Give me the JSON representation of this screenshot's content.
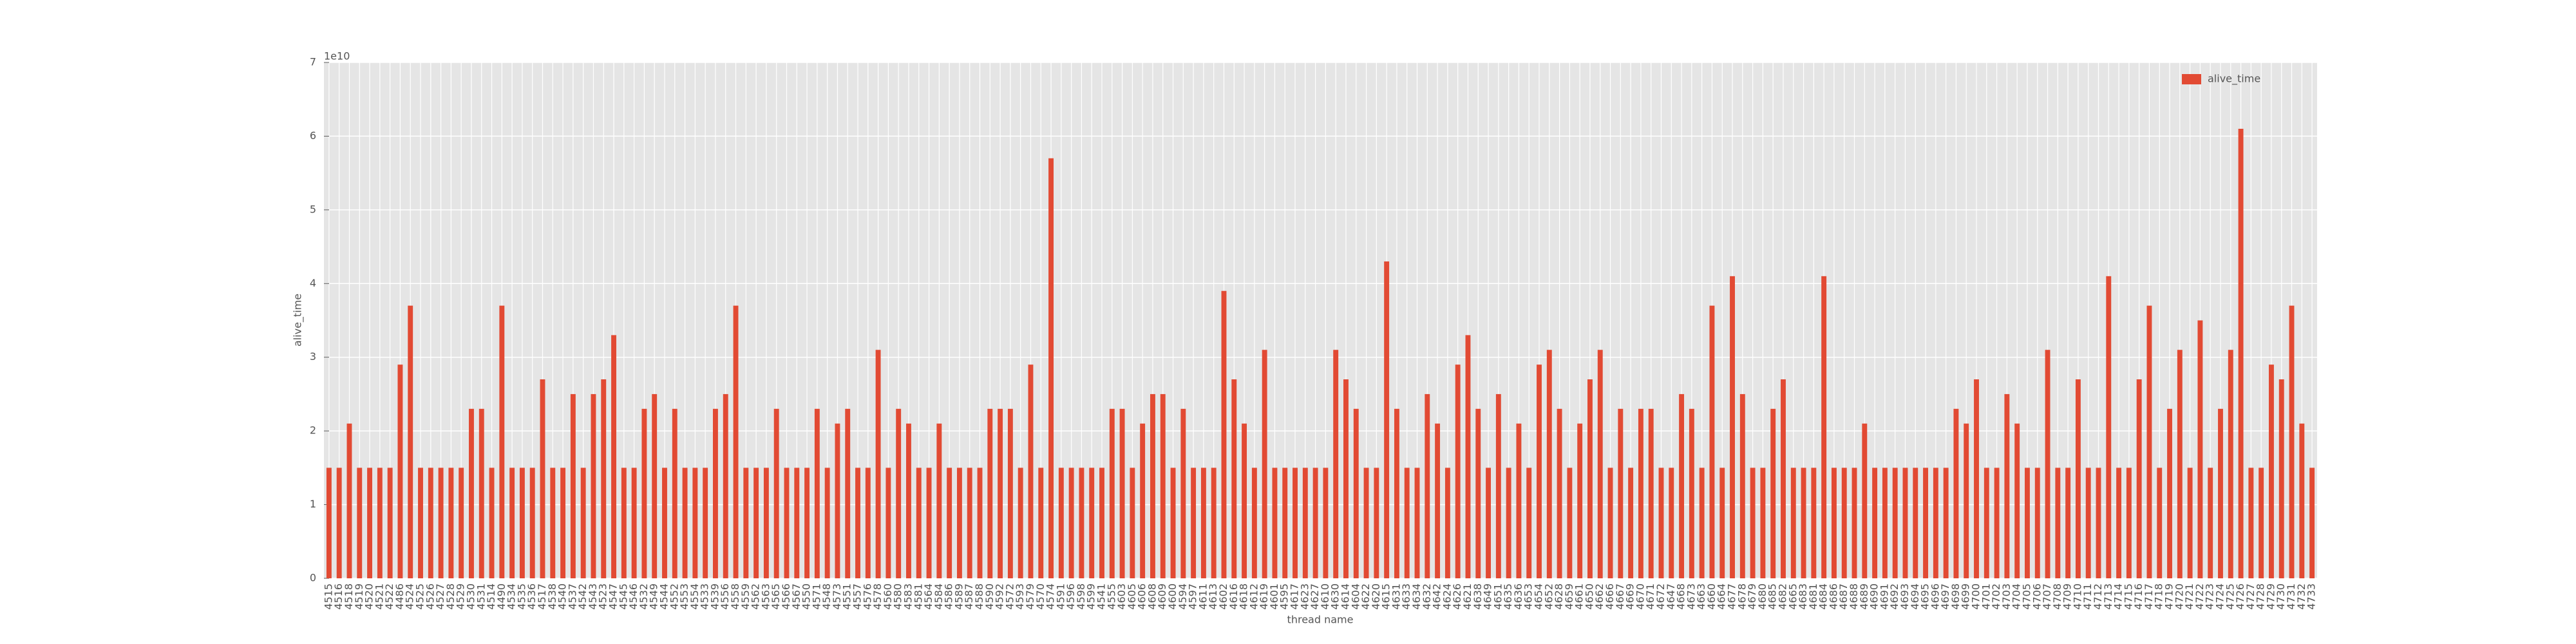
{
  "chart_data": {
    "type": "bar",
    "xlabel": "thread name",
    "ylabel": "alive_time",
    "y_offset_label": "1e10",
    "categories": [
      "4515",
      "4516",
      "4518",
      "4519",
      "4520",
      "4521",
      "4522",
      "4486",
      "4524",
      "4525",
      "4526",
      "4527",
      "4528",
      "4529",
      "4530",
      "4531",
      "4514",
      "4490",
      "4534",
      "4535",
      "4536",
      "4517",
      "4538",
      "4540",
      "4537",
      "4542",
      "4543",
      "4523",
      "4547",
      "4545",
      "4546",
      "4532",
      "4549",
      "4544",
      "4552",
      "4553",
      "4554",
      "4533",
      "4539",
      "4556",
      "4558",
      "4559",
      "4562",
      "4563",
      "4565",
      "4566",
      "4567",
      "4550",
      "4571",
      "4548",
      "4573",
      "4551",
      "4557",
      "4576",
      "4578",
      "4560",
      "4580",
      "4583",
      "4581",
      "4564",
      "4584",
      "4586",
      "4589",
      "4587",
      "4588",
      "4590",
      "4592",
      "4572",
      "4593",
      "4579",
      "4570",
      "4574",
      "4591",
      "4596",
      "4598",
      "4599",
      "4541",
      "4555",
      "4603",
      "4605",
      "4606",
      "4608",
      "4609",
      "4600",
      "4594",
      "4597",
      "4611",
      "4613",
      "4602",
      "4616",
      "4618",
      "4612",
      "4619",
      "4601",
      "4595",
      "4617",
      "4623",
      "4627",
      "4610",
      "4630",
      "4614",
      "4604",
      "4622",
      "4620",
      "4615",
      "4631",
      "4633",
      "4634",
      "4632",
      "4642",
      "4624",
      "4626",
      "4621",
      "4638",
      "4649",
      "4651",
      "4635",
      "4636",
      "4653",
      "4654",
      "4652",
      "4628",
      "4659",
      "4661",
      "4650",
      "4662",
      "4666",
      "4667",
      "4669",
      "4670",
      "4671",
      "4672",
      "4647",
      "4668",
      "4673",
      "4663",
      "4660",
      "4664",
      "4677",
      "4678",
      "4679",
      "4680",
      "4685",
      "4682",
      "4665",
      "4683",
      "4681",
      "4684",
      "4686",
      "4687",
      "4688",
      "4689",
      "4690",
      "4691",
      "4692",
      "4693",
      "4694",
      "4695",
      "4696",
      "4697",
      "4698",
      "4699",
      "4700",
      "4701",
      "4702",
      "4703",
      "4704",
      "4705",
      "4706",
      "4707",
      "4708",
      "4709",
      "4710",
      "4711",
      "4712",
      "4713",
      "4714",
      "4715",
      "4716",
      "4717",
      "4718",
      "4719",
      "4720",
      "4721",
      "4722",
      "4723",
      "4724",
      "4725",
      "4726",
      "4727",
      "4728",
      "4729",
      "4730",
      "4731",
      "4732",
      "4733"
    ],
    "series": [
      {
        "name": "alive_time",
        "color": "#e24a33",
        "values": [
          1.5,
          1.5,
          2.1,
          1.5,
          1.5,
          1.5,
          1.5,
          2.9,
          3.7,
          1.5,
          1.5,
          1.5,
          1.5,
          1.5,
          2.3,
          2.3,
          1.5,
          3.7,
          1.5,
          1.5,
          1.5,
          2.7,
          1.5,
          1.5,
          2.5,
          1.5,
          2.5,
          2.7,
          3.3,
          1.5,
          1.5,
          2.3,
          2.5,
          1.5,
          2.3,
          1.5,
          1.5,
          1.5,
          2.3,
          2.5,
          3.7,
          1.5,
          1.5,
          1.5,
          2.3,
          1.5,
          1.5,
          1.5,
          2.3,
          1.5,
          2.1,
          2.3,
          1.5,
          1.5,
          3.1,
          1.5,
          2.3,
          2.1,
          1.5,
          1.5,
          2.1,
          1.5,
          1.5,
          1.5,
          1.5,
          2.3,
          2.3,
          2.3,
          1.5,
          2.9,
          1.5,
          5.7,
          1.5,
          1.5,
          1.5,
          1.5,
          1.5,
          2.3,
          2.3,
          1.5,
          2.1,
          2.5,
          2.5,
          1.5,
          2.3,
          1.5,
          1.5,
          1.5,
          3.9,
          2.7,
          2.1,
          1.5,
          3.1,
          1.5,
          1.5,
          1.5,
          1.5,
          1.5,
          1.5,
          3.1,
          2.7,
          2.3,
          1.5,
          1.5,
          4.3,
          2.3,
          1.5,
          1.5,
          2.5,
          2.1,
          1.5,
          2.9,
          3.3,
          2.3,
          1.5,
          2.5,
          1.5,
          2.1,
          1.5,
          2.9,
          3.1,
          2.3,
          1.5,
          2.1,
          2.7,
          3.1,
          1.5,
          2.3,
          1.5,
          2.3,
          2.3,
          1.5,
          1.5,
          2.5,
          2.3,
          1.5,
          3.7,
          1.5,
          4.1,
          2.5,
          1.5,
          1.5,
          2.3,
          2.7,
          1.5,
          1.5,
          1.5,
          4.1,
          1.5,
          1.5,
          1.5,
          2.1,
          1.5,
          1.5,
          1.5,
          1.5,
          1.5,
          1.5,
          1.5,
          1.5,
          2.3,
          2.1,
          2.7,
          1.5,
          1.5,
          2.5,
          2.1,
          1.5,
          1.5,
          3.1,
          1.5,
          1.5,
          2.7,
          1.5,
          1.5,
          4.1,
          1.5,
          1.5,
          2.7,
          3.7,
          1.5,
          2.3,
          3.1,
          1.5,
          3.5,
          1.5,
          2.3,
          3.1,
          6.1,
          1.5,
          1.5,
          2.9,
          2.7,
          3.7,
          2.1,
          1.5
        ]
      }
    ],
    "ylim": [
      0,
      7
    ],
    "yticks": [
      0,
      1,
      2,
      3,
      4,
      5,
      6,
      7
    ],
    "grid": true,
    "legend": "upper right"
  }
}
